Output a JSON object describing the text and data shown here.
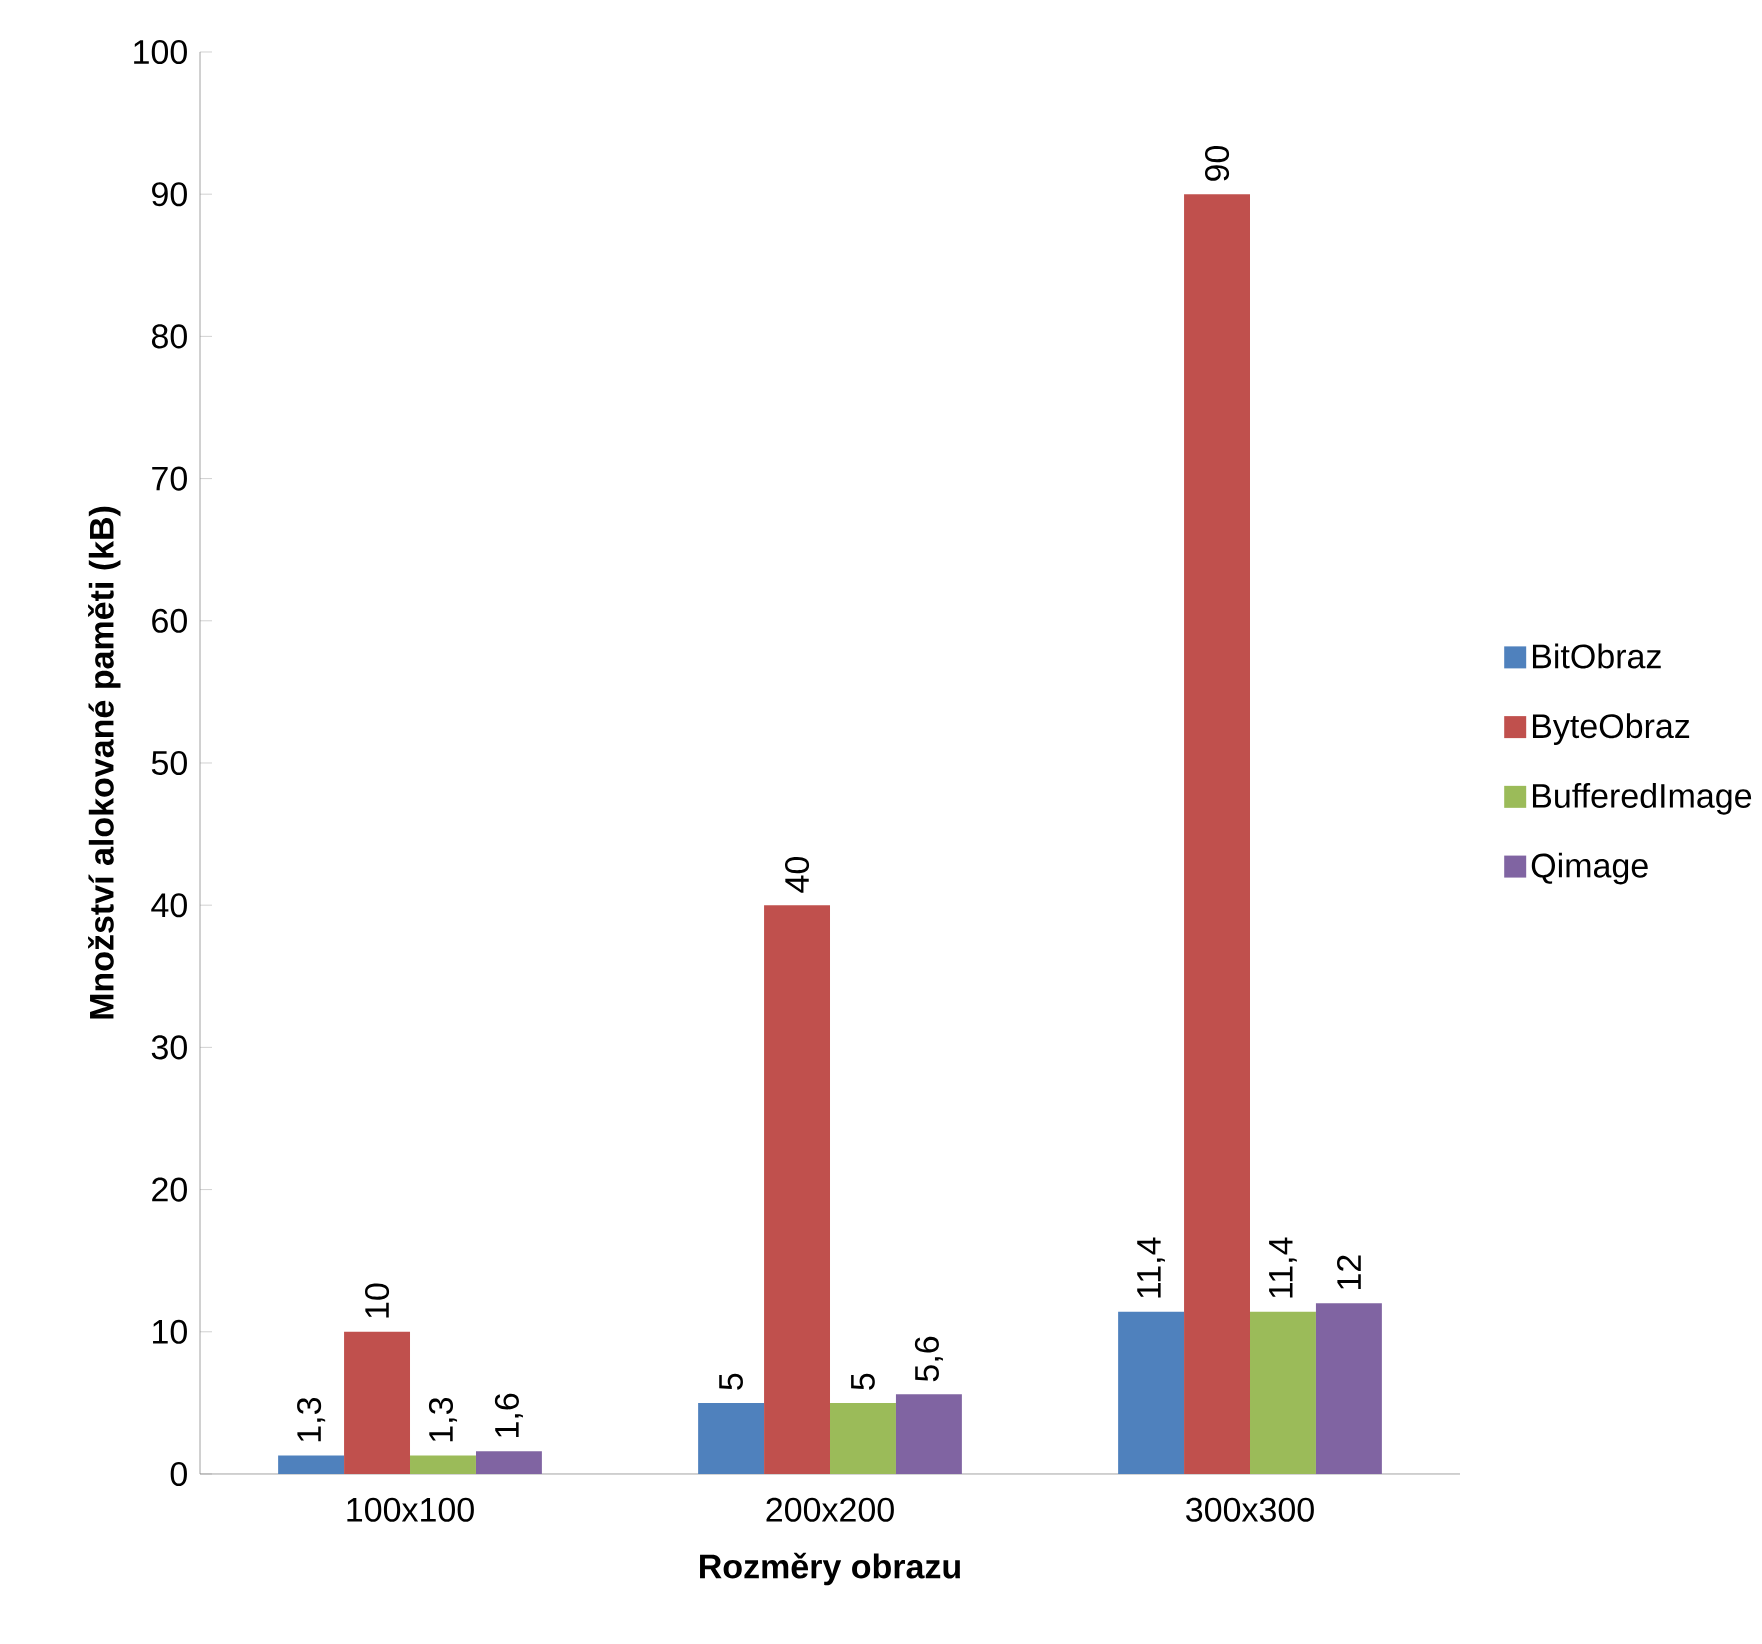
{
  "chart_data": {
    "type": "bar",
    "xlabel": "Rozměry obrazu",
    "ylabel": "Množství alokované paměti (kB)",
    "categories": [
      "100x100",
      "200x200",
      "300x300"
    ],
    "series": [
      {
        "name": "BitObraz",
        "color": "#4f81bd",
        "values": [
          1.3,
          5,
          11.4
        ],
        "value_labels": [
          "1,3",
          "5",
          "11,4"
        ]
      },
      {
        "name": "ByteObraz",
        "color": "#c0504d",
        "values": [
          10,
          40,
          90
        ],
        "value_labels": [
          "10",
          "40",
          "90"
        ]
      },
      {
        "name": "BufferedImage",
        "color": "#9bbb59",
        "values": [
          1.3,
          5,
          11.4
        ],
        "value_labels": [
          "1,3",
          "5",
          "11,4"
        ]
      },
      {
        "name": "Qimage",
        "color": "#8064a2",
        "values": [
          1.6,
          5.6,
          12
        ],
        "value_labels": [
          "1,6",
          "5,6",
          "12"
        ]
      }
    ],
    "ylim": [
      0,
      100
    ],
    "yticks": [
      0,
      10,
      20,
      30,
      40,
      50,
      60,
      70,
      80,
      90,
      100
    ],
    "legend": "right",
    "grid": false
  }
}
